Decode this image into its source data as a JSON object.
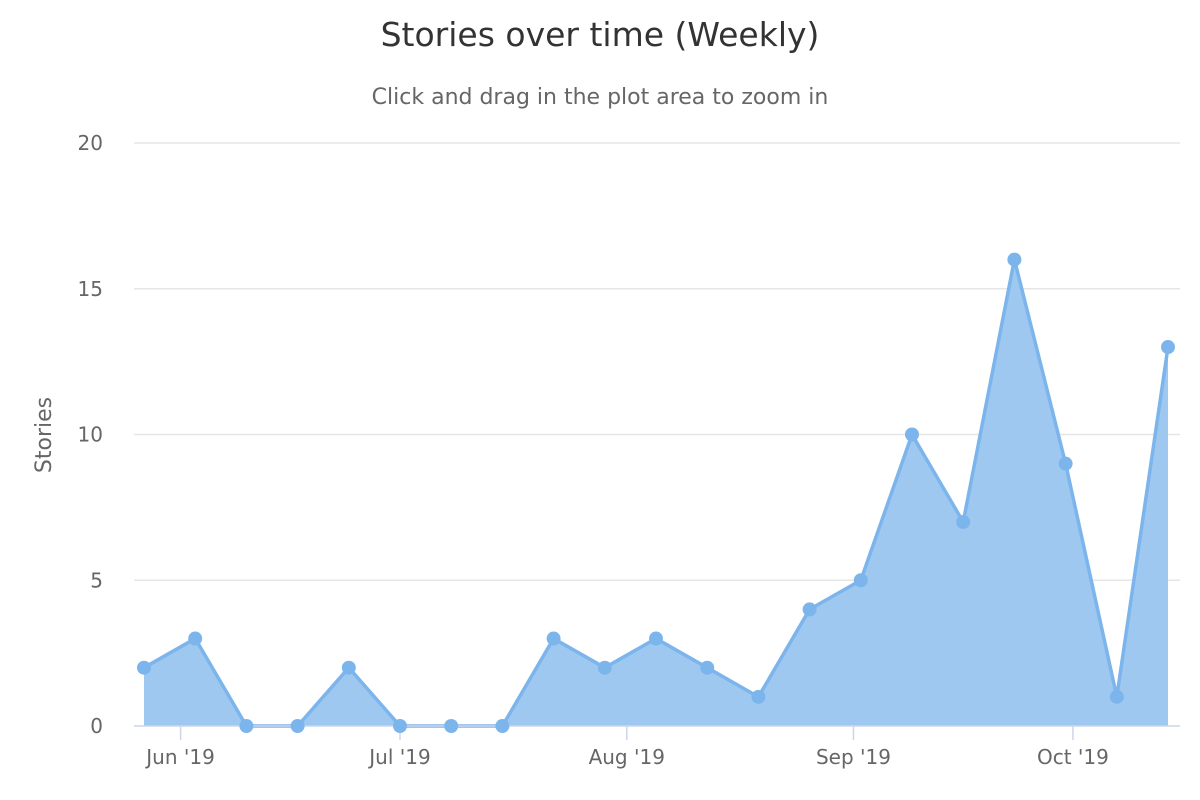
{
  "chart_data": {
    "type": "area",
    "title": "Stories over time (Weekly)",
    "subtitle": "Click and drag in the plot area to zoom in",
    "xlabel": "",
    "ylabel": "Stories",
    "ylim": [
      0,
      20
    ],
    "y_ticks": [
      0,
      5,
      10,
      15,
      20
    ],
    "x_ticks": [
      {
        "date": "2019-06-01",
        "label": "Jun '19"
      },
      {
        "date": "2019-07-01",
        "label": "Jul '19"
      },
      {
        "date": "2019-08-01",
        "label": "Aug '19"
      },
      {
        "date": "2019-09-01",
        "label": "Sep '19"
      },
      {
        "date": "2019-10-01",
        "label": "Oct '19"
      }
    ],
    "x": [
      "2019-05-27",
      "2019-06-03",
      "2019-06-10",
      "2019-06-17",
      "2019-06-24",
      "2019-07-01",
      "2019-07-08",
      "2019-07-15",
      "2019-07-22",
      "2019-07-29",
      "2019-08-05",
      "2019-08-12",
      "2019-08-19",
      "2019-08-26",
      "2019-09-02",
      "2019-09-09",
      "2019-09-16",
      "2019-09-23",
      "2019-09-30",
      "2019-10-07",
      "2019-10-14"
    ],
    "series": [
      {
        "values": [
          2,
          3,
          0,
          0,
          2,
          0,
          0,
          0,
          3,
          2,
          3,
          2,
          1,
          4,
          5,
          10,
          7,
          16,
          9,
          1,
          13
        ]
      }
    ],
    "grid": true,
    "legend": "none",
    "colors": {
      "series_line": "#7cb5ec",
      "series_fill": "#9ec8f0",
      "grid": "#e6e6e6",
      "axis": "#ccd6eb"
    }
  }
}
